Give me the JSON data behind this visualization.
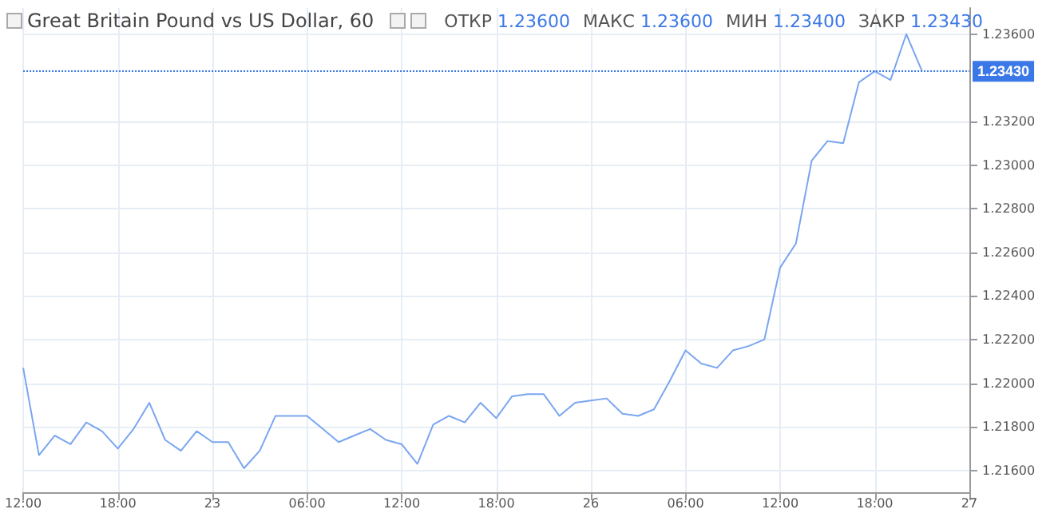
{
  "chart_data": {
    "type": "line",
    "title": "Great Britain Pound vs US Dollar, 60",
    "annotations": [
      "ОТКР 1.23600",
      "МАКС 1.23600",
      "МИН 1.23400",
      "ЗАКР 1.23430"
    ],
    "categories": [
      "12:00",
      null,
      null,
      null,
      null,
      null,
      "18:00",
      null,
      null,
      null,
      null,
      null,
      "23",
      null,
      null,
      null,
      null,
      null,
      "06:00",
      null,
      null,
      null,
      null,
      null,
      "12:00",
      null,
      null,
      null,
      null,
      null,
      "18:00",
      null,
      null,
      null,
      null,
      null,
      "26",
      null,
      null,
      null,
      null,
      null,
      "06:00",
      null,
      null,
      null,
      null,
      null,
      "12:00",
      null,
      null,
      null,
      null,
      null,
      "18:00",
      null,
      null,
      null,
      null,
      null,
      "27"
    ],
    "series": [
      {
        "color": "#7aa6f0",
        "values": [
          1.2207,
          1.2167,
          1.2176,
          1.2172,
          1.2182,
          1.2178,
          1.217,
          1.2179,
          1.2191,
          1.2174,
          1.2169,
          1.2178,
          1.2173,
          1.2173,
          1.2161,
          1.2169,
          1.2185,
          1.2185,
          1.2185,
          1.2179,
          1.2173,
          1.2176,
          1.2179,
          1.2174,
          1.2172,
          1.2163,
          1.2181,
          1.2185,
          1.2182,
          1.2191,
          1.2184,
          1.2194,
          1.2195,
          1.2195,
          1.2185,
          1.2191,
          1.2192,
          1.2193,
          1.2186,
          1.2185,
          1.2188,
          1.2201,
          1.2215,
          1.2209,
          1.2207,
          1.2215,
          1.2217,
          1.222,
          1.2253,
          1.2264,
          1.2302,
          1.2311,
          1.231,
          1.2338,
          1.2343,
          1.2339,
          1.236,
          1.2343,
          null,
          null,
          null
        ]
      }
    ],
    "ylim": [
      1.215,
      1.2372
    ],
    "yticks": [
      {
        "value": 1.216,
        "label": "1.21600"
      },
      {
        "value": 1.218,
        "label": "1.21800"
      },
      {
        "value": 1.22,
        "label": "1.22000"
      },
      {
        "value": 1.222,
        "label": "1.22200"
      },
      {
        "value": 1.224,
        "label": "1.22400"
      },
      {
        "value": 1.226,
        "label": "1.22600"
      },
      {
        "value": 1.228,
        "label": "1.22800"
      },
      {
        "value": 1.23,
        "label": "1.23000"
      },
      {
        "value": 1.232,
        "label": "1.23200"
      },
      {
        "value": 1.236,
        "label": "1.23600"
      }
    ],
    "ref_lines": [
      {
        "axis": "y",
        "value": 1.2343,
        "label": "1.23430",
        "color": "#3b78e7",
        "line_style": "dotted"
      }
    ],
    "grid": true,
    "marker": "none",
    "line_style": "solid"
  }
}
